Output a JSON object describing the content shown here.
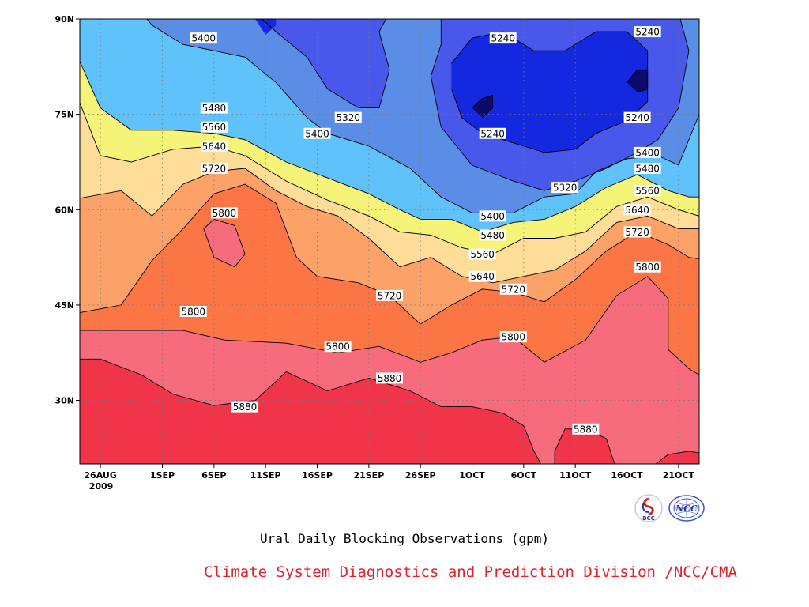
{
  "chart_data": {
    "type": "contour",
    "subtitle": "Ural Daily Blocking Observations (gpm)",
    "credit": "Climate System Diagnostics and Prediction Division /NCC/CMA",
    "x_axis": {
      "ticks": [
        "26AUG",
        "1SEP",
        "6SEP",
        "11SEP",
        "16SEP",
        "21SEP",
        "26SEP",
        "1OCT",
        "6OCT",
        "11OCT",
        "16OCT",
        "21OCT"
      ],
      "tick_days": [
        0,
        6,
        11,
        16,
        21,
        26,
        31,
        36,
        41,
        46,
        51,
        56
      ],
      "year_label": "2009",
      "range_days": [
        -2,
        58
      ]
    },
    "y_axis": {
      "ticks": [
        "30N",
        "45N",
        "60N",
        "75N",
        "90N"
      ],
      "tick_values": [
        30,
        45,
        60,
        75,
        90
      ],
      "range": [
        20,
        90
      ]
    },
    "grid": true,
    "levels": [
      5160,
      5240,
      5320,
      5400,
      5480,
      5560,
      5640,
      5720,
      5800,
      5880
    ],
    "fill_colors": {
      "lt5160": "#0d0b6a",
      "5160-5240": "#1428e0",
      "5240-5320": "#4858ea",
      "5320-5400": "#5a8ee6",
      "5400-5480": "#60c2fb",
      "5480-5560": "#f6f478",
      "5560-5640": "#fddd98",
      "5640-5720": "#fca268",
      "5720-5800": "#fb7644",
      "5800-5880": "#f76c7c",
      "gt5880": "#f0344a"
    },
    "contour_labels": [
      {
        "value": "5400",
        "day": 10,
        "lat": 87
      },
      {
        "value": "5240",
        "day": 39,
        "lat": 87
      },
      {
        "value": "5240",
        "day": 53,
        "lat": 88
      },
      {
        "value": "5480",
        "day": 11,
        "lat": 76
      },
      {
        "value": "5320",
        "day": 24,
        "lat": 74.5
      },
      {
        "value": "5560",
        "day": 11,
        "lat": 73
      },
      {
        "value": "5400",
        "day": 21,
        "lat": 72
      },
      {
        "value": "5240",
        "day": 38,
        "lat": 72
      },
      {
        "value": "5240",
        "day": 52,
        "lat": 74.5
      },
      {
        "value": "5640",
        "day": 11,
        "lat": 70
      },
      {
        "value": "5400",
        "day": 53,
        "lat": 69
      },
      {
        "value": "5720",
        "day": 11,
        "lat": 66.5
      },
      {
        "value": "5480",
        "day": 53,
        "lat": 66.5
      },
      {
        "value": "5320",
        "day": 45,
        "lat": 63.5
      },
      {
        "value": "5560",
        "day": 53,
        "lat": 63
      },
      {
        "value": "5800",
        "day": 12,
        "lat": 59.5
      },
      {
        "value": "5400",
        "day": 38,
        "lat": 59
      },
      {
        "value": "5640",
        "day": 52,
        "lat": 60
      },
      {
        "value": "5480",
        "day": 38,
        "lat": 56
      },
      {
        "value": "5720",
        "day": 52,
        "lat": 56.5
      },
      {
        "value": "5560",
        "day": 37,
        "lat": 53
      },
      {
        "value": "5800",
        "day": 53,
        "lat": 51
      },
      {
        "value": "5640",
        "day": 37,
        "lat": 49.5
      },
      {
        "value": "5720",
        "day": 40,
        "lat": 47.5
      },
      {
        "value": "5720",
        "day": 28,
        "lat": 46.5
      },
      {
        "value": "5800",
        "day": 9,
        "lat": 44
      },
      {
        "value": "5800",
        "day": 40,
        "lat": 40
      },
      {
        "value": "5800",
        "day": 23,
        "lat": 38.5
      },
      {
        "value": "5880",
        "day": 28,
        "lat": 33.5
      },
      {
        "value": "5880",
        "day": 14,
        "lat": 29
      },
      {
        "value": "5880",
        "day": 47,
        "lat": 25.5
      }
    ]
  },
  "logos": {
    "bcc": "BCC",
    "ncc": "NCC"
  }
}
